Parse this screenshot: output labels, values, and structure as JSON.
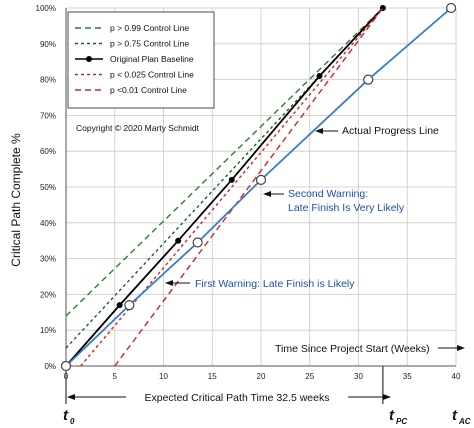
{
  "chart_data": {
    "type": "line",
    "ylabel": "Critical Path Complete %",
    "xlim": [
      0,
      40
    ],
    "ylim": [
      0,
      100
    ],
    "x_ticks": [
      0,
      5,
      10,
      15,
      20,
      25,
      30,
      35,
      40
    ],
    "y_ticks": [
      "0%",
      "10%",
      "20%",
      "30%",
      "40%",
      "50%",
      "60%",
      "70%",
      "80%",
      "90%",
      "100%"
    ],
    "grid": true,
    "legend_position": "top-left",
    "series": [
      {
        "name": "p > 0.99 Control Line",
        "color": "#2e7d32",
        "dash": "long",
        "points": [
          [
            0,
            14
          ],
          [
            32.5,
            100
          ]
        ]
      },
      {
        "name": "p > 0.75 Control Line",
        "color": "#1b5e20",
        "dash": "short",
        "points": [
          [
            0,
            5
          ],
          [
            32.5,
            100
          ]
        ]
      },
      {
        "name": "Original Plan Baseline",
        "color": "#000000",
        "dash": "solid",
        "markers": "filled",
        "points": [
          [
            0,
            0
          ],
          [
            5.5,
            17
          ],
          [
            11.5,
            35
          ],
          [
            17,
            52
          ],
          [
            26,
            81
          ],
          [
            32.5,
            100
          ]
        ]
      },
      {
        "name": "p < 0.025 Control Line",
        "color": "#c62828",
        "dash": "short",
        "points": [
          [
            1.5,
            0
          ],
          [
            32.5,
            100
          ]
        ]
      },
      {
        "name": "p <0.01 Control Line",
        "color": "#c62828",
        "dash": "long",
        "points": [
          [
            5,
            0
          ],
          [
            32.5,
            100
          ]
        ]
      },
      {
        "name": "Actual Progress Line",
        "color": "#3a7bc8",
        "dash": "solid",
        "markers": "open",
        "points": [
          [
            0,
            0
          ],
          [
            6.5,
            17
          ],
          [
            13.5,
            34.5
          ],
          [
            20,
            52
          ],
          [
            31,
            80
          ],
          [
            39.5,
            100
          ]
        ]
      }
    ],
    "annotations": {
      "copyright": "Copyright ©  2020 Marty Schmidt",
      "actual_progress": "Actual Progress Line",
      "second_warning_1": "Second Warning:",
      "second_warning_2": "Late Finish Is Very Likely",
      "first_warning": "First Warning: Late Finish is Likely",
      "time_since_start": "Time Since Project Start (Weeks)",
      "expected_time": "Expected Critical Path Time 32.5 weeks",
      "t0_main": "t",
      "t0_sub": "0",
      "tpc_main": "t",
      "tpc_sub": "PC",
      "tac_main": "t",
      "tac_sub": "AC"
    }
  }
}
